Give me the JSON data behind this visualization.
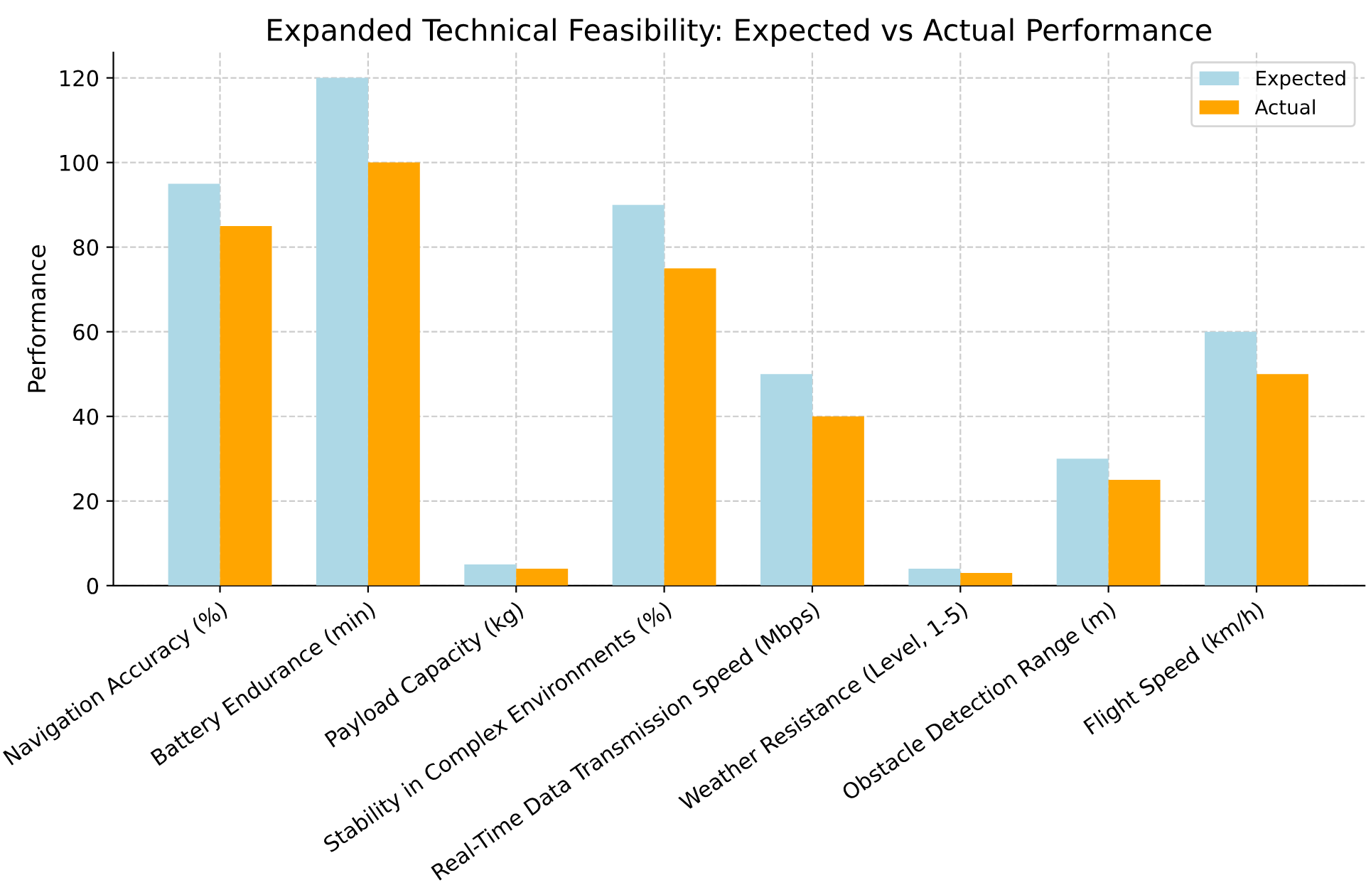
{
  "chart_data": {
    "type": "bar",
    "title": "Expanded Technical Feasibility: Expected vs Actual Performance",
    "ylabel": "Performance",
    "categories": [
      "Navigation Accuracy (%)",
      "Battery Endurance (min)",
      "Payload Capacity (kg)",
      "Stability in Complex Environments (%)",
      "Real-Time Data Transmission Speed (Mbps)",
      "Weather Resistance (Level, 1-5)",
      "Obstacle Detection Range (m)",
      "Flight Speed (km/h)"
    ],
    "series": [
      {
        "name": "Expected",
        "color": "#add8e6",
        "values": [
          95,
          120,
          5,
          90,
          50,
          4,
          30,
          60
        ]
      },
      {
        "name": "Actual",
        "color": "#ffa500",
        "values": [
          85,
          100,
          4,
          75,
          40,
          3,
          25,
          50
        ]
      }
    ],
    "ylim": [
      0,
      126
    ],
    "yticks": [
      0,
      20,
      40,
      60,
      80,
      100,
      120
    ],
    "grid": true,
    "legend": "top right"
  }
}
